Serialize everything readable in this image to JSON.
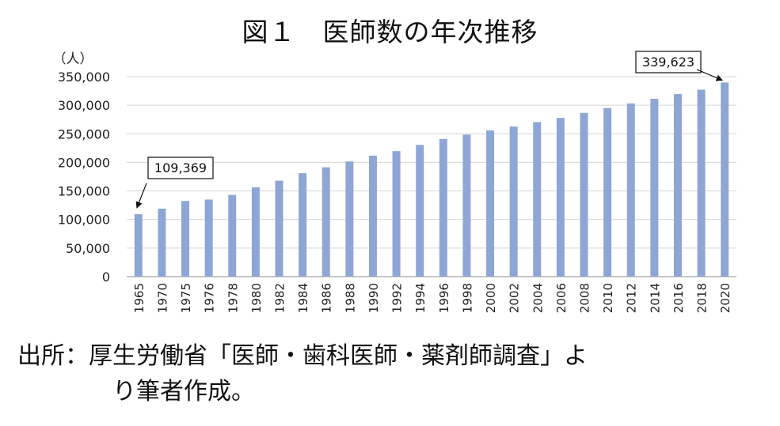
{
  "figure": {
    "title": "図１　医師数の年次推移",
    "unit": "（人）",
    "source_line1": "出所：厚生労働省「医師・歯科医師・薬剤師調査」よ",
    "source_line2": "り筆者作成。"
  },
  "chart_data": {
    "type": "bar",
    "title": "図１　医師数の年次推移",
    "ylabel": "（人）",
    "xlabel": "",
    "ylim": [
      0,
      350000
    ],
    "yticks": [
      0,
      50000,
      100000,
      150000,
      200000,
      250000,
      300000,
      350000
    ],
    "ytick_labels": [
      "0",
      "50,000",
      "100,000",
      "150,000",
      "200,000",
      "250,000",
      "300,000",
      "350,000"
    ],
    "grid": true,
    "bar_color": "#8ea6d6",
    "categories": [
      "1965",
      "1970",
      "1975",
      "1976",
      "1978",
      "1980",
      "1982",
      "1984",
      "1986",
      "1988",
      "1990",
      "1992",
      "1994",
      "1996",
      "1998",
      "2000",
      "2002",
      "2004",
      "2006",
      "2008",
      "2010",
      "2012",
      "2014",
      "2016",
      "2018",
      "2020"
    ],
    "values": [
      109369,
      118990,
      132479,
      134934,
      142984,
      156235,
      167952,
      181101,
      191346,
      201658,
      211797,
      219704,
      230519,
      240908,
      248611,
      255792,
      262687,
      270371,
      277927,
      286699,
      295049,
      303268,
      311205,
      319480,
      327210,
      339623
    ],
    "annotations": [
      {
        "text": "109,369",
        "category": "1965"
      },
      {
        "text": "339,623",
        "category": "2020"
      }
    ]
  }
}
